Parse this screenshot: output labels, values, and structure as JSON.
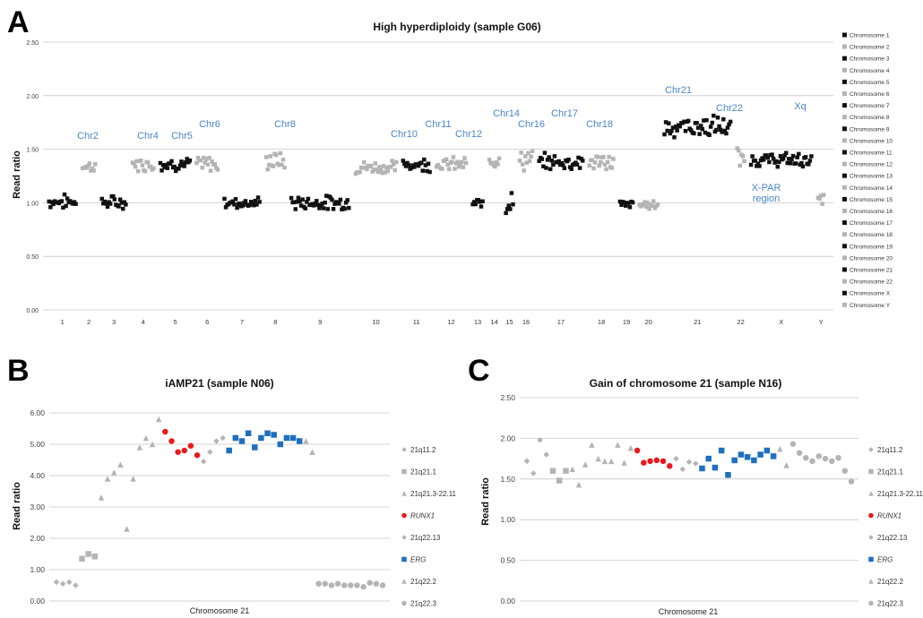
{
  "panels": {
    "a": {
      "letter": "A"
    },
    "b": {
      "letter": "B"
    },
    "c": {
      "letter": "C"
    }
  },
  "colors": {
    "black": "#111111",
    "gray": "#b4b4b4",
    "red": "#e8191c",
    "blue": "#1f6fbf",
    "annotation": "#4a86c5",
    "grid": "#c8c8c8"
  },
  "chart_data": [
    {
      "panel": "A",
      "type": "scatter",
      "title": "High hyperdiploidy (sample G06)",
      "xlabel": "",
      "ylabel": "Read ratio",
      "ylim": [
        0,
        2.5
      ],
      "yticks": [
        "0.00",
        "0.50",
        "1.00",
        "1.50",
        "2.00",
        "2.50"
      ],
      "grid": true,
      "legend_position": "right",
      "chromosome_tick_labels": [
        "1",
        "2",
        "3",
        "4",
        "5",
        "6",
        "7",
        "8",
        "9",
        "10",
        "11",
        "12",
        "13",
        "14",
        "15",
        "16",
        "17",
        "18",
        "19",
        "20",
        "21",
        "22",
        "X",
        "Y"
      ],
      "annotations": [
        "Chr2",
        "Chr4",
        "Chr5",
        "Chr6",
        "Chr8",
        "Chr10",
        "Chr11",
        "Chr12",
        "Chr14",
        "Chr16",
        "Chr17",
        "Chr18",
        "Chr21",
        "Chr22",
        "Xq",
        "X-PAR region"
      ],
      "series": [
        {
          "name": "Chromosome 1",
          "marker": "square",
          "color": "black",
          "n": 20,
          "mean": 1.01,
          "spread": 0.05
        },
        {
          "name": "Chromosome 2",
          "marker": "square",
          "color": "gray",
          "n": 10,
          "mean": 1.34,
          "spread": 0.04
        },
        {
          "name": "Chromosome 3",
          "marker": "square",
          "color": "black",
          "n": 18,
          "mean": 1.0,
          "spread": 0.05
        },
        {
          "name": "Chromosome 4",
          "marker": "square",
          "color": "gray",
          "n": 16,
          "mean": 1.36,
          "spread": 0.05
        },
        {
          "name": "Chromosome 5",
          "marker": "square",
          "color": "black",
          "n": 22,
          "mean": 1.36,
          "spread": 0.05
        },
        {
          "name": "Chromosome 6",
          "marker": "square",
          "color": "gray",
          "n": 16,
          "mean": 1.36,
          "spread": 0.06
        },
        {
          "name": "Chromosome 7",
          "marker": "square",
          "color": "black",
          "n": 26,
          "mean": 1.0,
          "spread": 0.04
        },
        {
          "name": "Chromosome 8",
          "marker": "square",
          "color": "gray",
          "n": 14,
          "mean": 1.39,
          "spread": 0.07
        },
        {
          "name": "Chromosome 9",
          "marker": "square",
          "color": "black",
          "n": 42,
          "mean": 1.0,
          "spread": 0.05
        },
        {
          "name": "Chromosome 10",
          "marker": "square",
          "color": "gray",
          "n": 30,
          "mean": 1.33,
          "spread": 0.05
        },
        {
          "name": "Chromosome 11",
          "marker": "square",
          "color": "black",
          "n": 20,
          "mean": 1.36,
          "spread": 0.05
        },
        {
          "name": "Chromosome 12",
          "marker": "square",
          "color": "gray",
          "n": 22,
          "mean": 1.36,
          "spread": 0.05
        },
        {
          "name": "Chromosome 13",
          "marker": "square",
          "color": "black",
          "n": 8,
          "mean": 0.99,
          "spread": 0.04
        },
        {
          "name": "Chromosome 14",
          "marker": "square",
          "color": "gray",
          "n": 8,
          "mean": 1.41,
          "spread": 0.07
        },
        {
          "name": "Chromosome 15",
          "marker": "square",
          "color": "black",
          "n": 6,
          "mean": 1.0,
          "spread": 0.08
        },
        {
          "name": "Chromosome 16",
          "marker": "square",
          "color": "gray",
          "n": 10,
          "mean": 1.4,
          "spread": 0.08
        },
        {
          "name": "Chromosome 17",
          "marker": "square",
          "color": "black",
          "n": 32,
          "mean": 1.38,
          "spread": 0.06
        },
        {
          "name": "Chromosome 18",
          "marker": "square",
          "color": "gray",
          "n": 18,
          "mean": 1.38,
          "spread": 0.06
        },
        {
          "name": "Chromosome 19",
          "marker": "square",
          "color": "black",
          "n": 10,
          "mean": 0.98,
          "spread": 0.04
        },
        {
          "name": "Chromosome 20",
          "marker": "square",
          "color": "gray",
          "n": 14,
          "mean": 0.98,
          "spread": 0.03
        },
        {
          "name": "Chromosome 21",
          "marker": "square",
          "color": "black",
          "n": 48,
          "mean": 1.71,
          "spread": 0.08
        },
        {
          "name": "Chromosome 22",
          "marker": "square",
          "color": "gray",
          "n": 6,
          "mean": 1.4,
          "spread": 0.1
        },
        {
          "name": "Chromosome X",
          "marker": "square",
          "color": "black",
          "n": 44,
          "mean": 1.4,
          "spread": 0.05
        },
        {
          "name": "Chromosome Y",
          "marker": "square",
          "color": "gray",
          "n": 5,
          "mean": 1.02,
          "spread": 0.05
        }
      ]
    },
    {
      "panel": "B",
      "type": "scatter",
      "title": "iAMP21 (sample N06)",
      "xlabel": "Chromosome 21",
      "ylabel": "Read ratio",
      "ylim": [
        0,
        6
      ],
      "yticks": [
        "0.00",
        "1.00",
        "2.00",
        "3.00",
        "4.00",
        "5.00",
        "6.00"
      ],
      "grid": true,
      "legend_position": "right",
      "series": [
        {
          "name": "21q11.2",
          "marker": "diamond",
          "color": "gray",
          "values": [
            0.6,
            0.55,
            0.6,
            0.5
          ]
        },
        {
          "name": "21q21.1",
          "marker": "square",
          "color": "gray",
          "values": [
            1.35,
            1.5,
            1.42
          ]
        },
        {
          "name": "21q21.3-22.11",
          "marker": "triangle",
          "color": "gray",
          "values": [
            3.3,
            3.9,
            4.1,
            4.35,
            2.3,
            3.9,
            4.9,
            5.2,
            5.0,
            5.8
          ]
        },
        {
          "name": "RUNX1",
          "marker": "circle",
          "color": "red",
          "values": [
            5.4,
            5.1,
            4.75,
            4.8,
            4.95,
            4.65
          ]
        },
        {
          "name": "21q22.13",
          "marker": "diamond",
          "color": "gray",
          "values": [
            4.45,
            4.75,
            5.1,
            5.2
          ]
        },
        {
          "name": "ERG",
          "marker": "square",
          "color": "blue",
          "values": [
            4.8,
            5.2,
            5.1,
            5.35,
            4.9,
            5.2,
            5.35,
            5.3,
            5.0,
            5.2,
            5.2,
            5.1
          ]
        },
        {
          "name": "21q22.2",
          "marker": "triangle",
          "color": "gray",
          "values": [
            5.1,
            4.75
          ]
        },
        {
          "name": "21q22.3",
          "marker": "circle",
          "color": "gray",
          "values": [
            0.55,
            0.55,
            0.5,
            0.55,
            0.5,
            0.5,
            0.5,
            0.45,
            0.58,
            0.55,
            0.5
          ]
        }
      ]
    },
    {
      "panel": "C",
      "type": "scatter",
      "title": "Gain of chromosome 21 (sample N16)",
      "xlabel": "Chromosome  21",
      "ylabel": "Read ratio",
      "ylim": [
        0,
        2.5
      ],
      "yticks": [
        "0.00",
        "0.50",
        "1.00",
        "1.50",
        "2.00",
        "2.50"
      ],
      "grid": true,
      "legend_position": "right",
      "series": [
        {
          "name": "21q11.2",
          "marker": "diamond",
          "color": "gray",
          "values": [
            1.72,
            1.57,
            1.98,
            1.8
          ]
        },
        {
          "name": "21q21.1",
          "marker": "square",
          "color": "gray",
          "values": [
            1.6,
            1.48,
            1.6
          ]
        },
        {
          "name": "21q21.3-22.11",
          "marker": "triangle",
          "color": "gray",
          "values": [
            1.62,
            1.43,
            1.68,
            1.92,
            1.75,
            1.72,
            1.72,
            1.92,
            1.7,
            1.88
          ]
        },
        {
          "name": "RUNX1",
          "marker": "circle",
          "color": "red",
          "values": [
            1.85,
            1.7,
            1.72,
            1.73,
            1.72,
            1.66
          ]
        },
        {
          "name": "21q22.13",
          "marker": "diamond",
          "color": "gray",
          "values": [
            1.75,
            1.62,
            1.71,
            1.69
          ]
        },
        {
          "name": "ERG",
          "marker": "square",
          "color": "blue",
          "values": [
            1.63,
            1.75,
            1.64,
            1.85,
            1.55,
            1.73,
            1.8,
            1.77,
            1.73,
            1.8,
            1.85,
            1.78
          ]
        },
        {
          "name": "21q22.2",
          "marker": "triangle",
          "color": "gray",
          "values": [
            1.87,
            1.67
          ]
        },
        {
          "name": "21q22.3",
          "marker": "circle",
          "color": "gray",
          "values": [
            1.93,
            1.82,
            1.76,
            1.72,
            1.78,
            1.75,
            1.72,
            1.76,
            1.6,
            1.47
          ]
        }
      ]
    }
  ]
}
